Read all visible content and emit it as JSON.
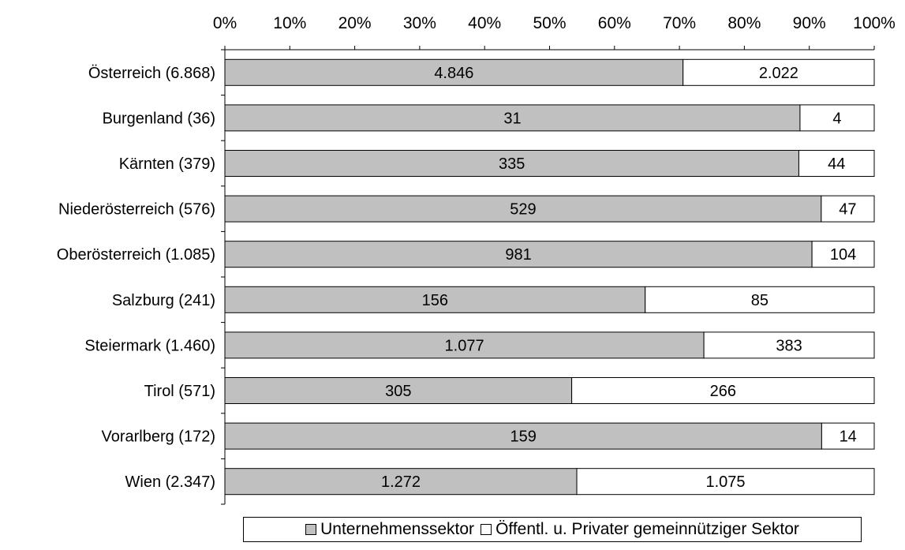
{
  "chart_data": {
    "type": "bar",
    "orientation": "horizontal",
    "stacked": "100%",
    "categories": [
      "Österreich (6.868)",
      "Burgenland (36)",
      "Kärnten (379)",
      "Niederösterreich (576)",
      "Oberösterreich (1.085)",
      "Salzburg (241)",
      "Steiermark (1.460)",
      "Tirol (571)",
      "Vorarlberg (172)",
      "Wien (2.347)"
    ],
    "series": [
      {
        "name": "Unternehmenssektor",
        "color": "#c0c0c0",
        "values": [
          4846,
          31,
          335,
          529,
          981,
          156,
          1077,
          305,
          159,
          1272
        ],
        "labels": [
          "4.846",
          "31",
          "335",
          "529",
          "981",
          "156",
          "1.077",
          "305",
          "159",
          "1.272"
        ]
      },
      {
        "name": "Öffentl. u. Privater gemeinnütziger Sektor",
        "color": "#ffffff",
        "values": [
          2022,
          4,
          44,
          47,
          104,
          85,
          383,
          266,
          14,
          1075
        ],
        "labels": [
          "2.022",
          "4",
          "44",
          "47",
          "104",
          "85",
          "383",
          "266",
          "14",
          "1.075"
        ]
      }
    ],
    "x_ticks": [
      "0%",
      "10%",
      "20%",
      "30%",
      "40%",
      "50%",
      "60%",
      "70%",
      "80%",
      "90%",
      "100%"
    ],
    "xlim": [
      0,
      100
    ],
    "x_axis_position": "top",
    "grid": false,
    "legend_position": "bottom"
  }
}
